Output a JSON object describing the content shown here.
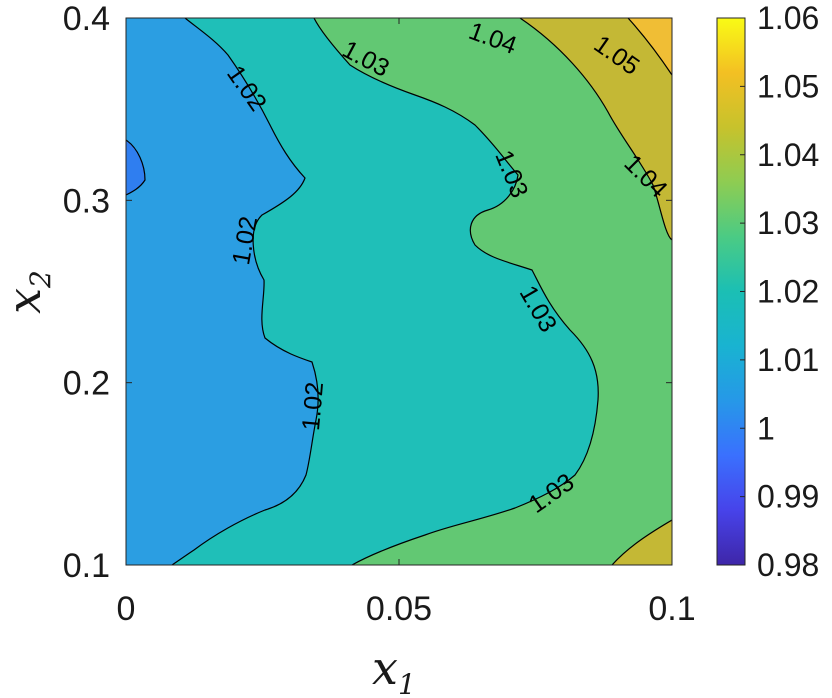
{
  "chart_data": {
    "type": "contour",
    "xlabel": "x",
    "xlabel_sub": "1",
    "ylabel": "x",
    "ylabel_sub": "2",
    "xlim": [
      0,
      0.1
    ],
    "ylim": [
      0.1,
      0.4
    ],
    "x_ticks": [
      "0",
      "0.05",
      "0.1"
    ],
    "y_ticks": [
      "0.1",
      "0.2",
      "0.3",
      "0.4"
    ],
    "colorbar": {
      "range": [
        0.98,
        1.06
      ],
      "ticks": [
        "0.98",
        "0.99",
        "1",
        "1.01",
        "1.02",
        "1.03",
        "1.04",
        "1.05",
        "1.06"
      ],
      "colormap": [
        "#3e26a8",
        "#4743ea",
        "#3a70fe",
        "#2698e8",
        "#19b3d1",
        "#1bbfb4",
        "#4bcb84",
        "#8ecc52",
        "#c7c22c",
        "#f3c023",
        "#f9fb15"
      ]
    },
    "contour_levels": [
      1.02,
      1.03,
      1.04,
      1.05
    ],
    "contour_labels": [
      "1.02",
      "1.02",
      "1.02",
      "1.03",
      "1.03",
      "1.03",
      "1.03",
      "1.04",
      "1.04",
      "1.05"
    ],
    "region_colors": {
      "lt_1_01": "#2f7ef0",
      "b_1_01_1_02": "#2b9ee2",
      "b_1_02_1_03": "#1fbfb8",
      "b_1_03_1_04": "#62c873",
      "b_1_04_1_05": "#c4b835",
      "b_1_05_1_06": "#f0be35"
    }
  }
}
